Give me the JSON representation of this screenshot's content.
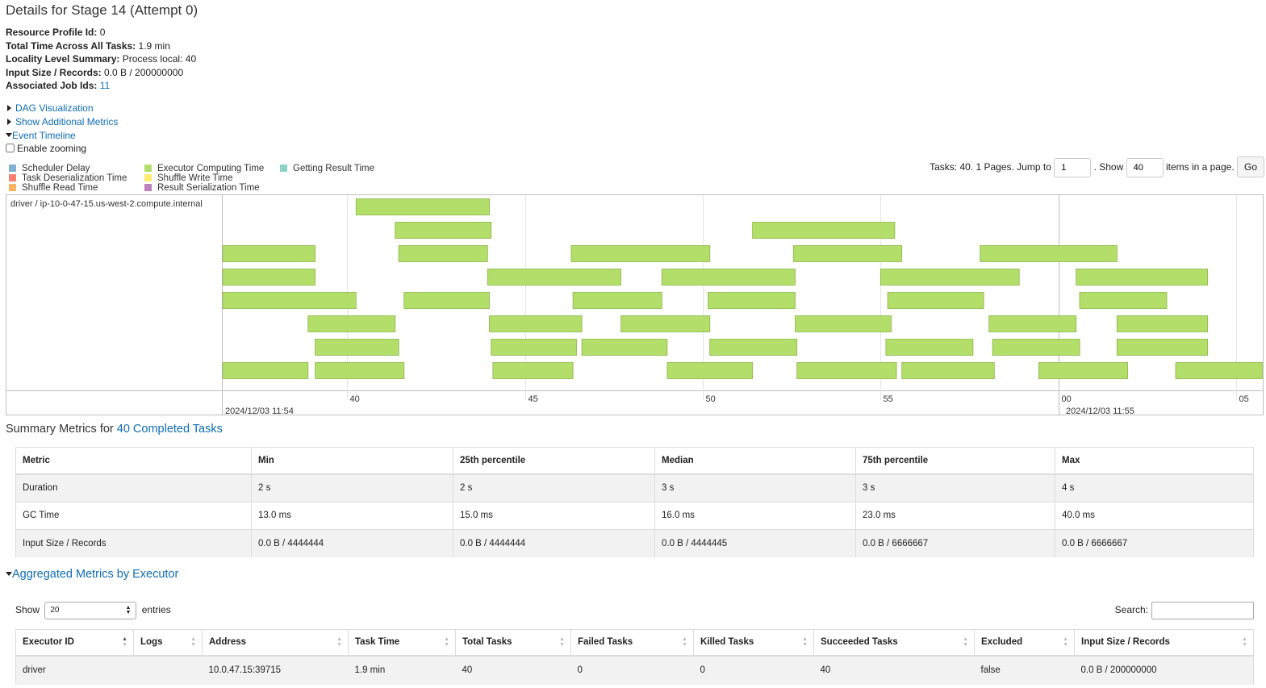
{
  "page": {
    "title": "Details for Stage 14 (Attempt 0)"
  },
  "stage_summary": [
    {
      "label": "Resource Profile Id:",
      "value": "0"
    },
    {
      "label": "Total Time Across All Tasks:",
      "value": "1.9 min"
    },
    {
      "label": "Locality Level Summary:",
      "value": "Process local: 40"
    },
    {
      "label": "Input Size / Records:",
      "value": "0.0 B / 200000000"
    },
    {
      "label": "Associated Job Ids:",
      "value": "11"
    }
  ],
  "toggles": {
    "dag": "DAG Visualization",
    "additional_metrics": "Show Additional Metrics",
    "event_timeline": "Event Timeline",
    "enable_zooming": "Enable zooming"
  },
  "legend": [
    {
      "label": "Scheduler Delay",
      "color": "#80b1d3"
    },
    {
      "label": "Task Deserialization Time",
      "color": "#fb8072"
    },
    {
      "label": "Shuffle Read Time",
      "color": "#fdb462"
    },
    {
      "label": "Executor Computing Time",
      "color": "#b3de69"
    },
    {
      "label": "Shuffle Write Time",
      "color": "#ffed6f"
    },
    {
      "label": "Result Serialization Time",
      "color": "#bc80bd"
    },
    {
      "label": "Getting Result Time",
      "color": "#8dd3c7"
    }
  ],
  "pager": {
    "prefix": "Tasks: 40. 1 Pages. Jump to",
    "jump_value": "1",
    "show_label": ". Show",
    "show_value": "40",
    "suffix": "items in a page.",
    "go": "Go"
  },
  "timeline": {
    "group_label": "driver / ip-10-0-47-15.us-west-2.compute.internal",
    "start_label": "2024/12/03 11:54",
    "end_label": "2024/12/03 11:55",
    "ticks": [
      "40",
      "45",
      "50",
      "55",
      "00",
      "05"
    ],
    "bar_color": "#b3de69",
    "bar_border": "#8ab748",
    "x_range_seconds": [
      36.5,
      65.75
    ],
    "tasks": [
      {
        "row": 0,
        "start": 40.25,
        "end": 44.0
      },
      {
        "row": 1,
        "start": 41.35,
        "end": 44.05
      },
      {
        "row": 1,
        "start": 51.4,
        "end": 55.4
      },
      {
        "row": 2,
        "start": 36.5,
        "end": 39.1
      },
      {
        "row": 2,
        "start": 41.45,
        "end": 43.95
      },
      {
        "row": 2,
        "start": 46.3,
        "end": 50.2
      },
      {
        "row": 2,
        "start": 52.55,
        "end": 55.6
      },
      {
        "row": 2,
        "start": 57.8,
        "end": 61.65
      },
      {
        "row": 3,
        "start": 36.5,
        "end": 39.1
      },
      {
        "row": 3,
        "start": 43.95,
        "end": 47.7
      },
      {
        "row": 3,
        "start": 48.85,
        "end": 52.6
      },
      {
        "row": 3,
        "start": 55.0,
        "end": 58.9
      },
      {
        "row": 3,
        "start": 60.5,
        "end": 64.2
      },
      {
        "row": 4,
        "start": 36.5,
        "end": 40.25
      },
      {
        "row": 4,
        "start": 41.6,
        "end": 44.0
      },
      {
        "row": 4,
        "start": 46.35,
        "end": 48.85
      },
      {
        "row": 4,
        "start": 50.15,
        "end": 52.6
      },
      {
        "row": 4,
        "start": 55.2,
        "end": 57.9
      },
      {
        "row": 4,
        "start": 60.6,
        "end": 63.05
      },
      {
        "row": 5,
        "start": 38.9,
        "end": 41.35
      },
      {
        "row": 5,
        "start": 44.0,
        "end": 46.6
      },
      {
        "row": 5,
        "start": 47.7,
        "end": 50.2
      },
      {
        "row": 5,
        "start": 52.6,
        "end": 55.3
      },
      {
        "row": 5,
        "start": 58.05,
        "end": 60.5
      },
      {
        "row": 5,
        "start": 61.65,
        "end": 64.2
      },
      {
        "row": 6,
        "start": 39.1,
        "end": 41.45
      },
      {
        "row": 6,
        "start": 44.05,
        "end": 46.45
      },
      {
        "row": 6,
        "start": 46.6,
        "end": 49.0
      },
      {
        "row": 6,
        "start": 50.2,
        "end": 52.65
      },
      {
        "row": 6,
        "start": 55.15,
        "end": 57.6
      },
      {
        "row": 6,
        "start": 58.15,
        "end": 60.6
      },
      {
        "row": 6,
        "start": 61.65,
        "end": 64.2
      },
      {
        "row": 7,
        "start": 36.5,
        "end": 38.9
      },
      {
        "row": 7,
        "start": 39.1,
        "end": 41.6
      },
      {
        "row": 7,
        "start": 44.1,
        "end": 46.35
      },
      {
        "row": 7,
        "start": 49.0,
        "end": 51.4
      },
      {
        "row": 7,
        "start": 52.65,
        "end": 55.45
      },
      {
        "row": 7,
        "start": 55.6,
        "end": 58.2
      },
      {
        "row": 7,
        "start": 59.45,
        "end": 61.95
      },
      {
        "row": 7,
        "start": 63.3,
        "end": 65.95
      }
    ]
  },
  "summary_metrics": {
    "title_prefix": "Summary Metrics for ",
    "title_link": "40 Completed Tasks",
    "headers": [
      "Metric",
      "Min",
      "25th percentile",
      "Median",
      "75th percentile",
      "Max"
    ],
    "rows": [
      [
        "Duration",
        "2 s",
        "2 s",
        "3 s",
        "3 s",
        "4 s"
      ],
      [
        "GC Time",
        "13.0 ms",
        "15.0 ms",
        "16.0 ms",
        "23.0 ms",
        "40.0 ms"
      ],
      [
        "Input Size / Records",
        "0.0 B / 4444444",
        "0.0 B / 4444444",
        "0.0 B / 4444445",
        "0.0 B / 6666667",
        "0.0 B / 6666667"
      ]
    ]
  },
  "aggregated": {
    "title": "Aggregated Metrics by Executor",
    "show_label": "Show",
    "entries_value": "20",
    "entries_label": "entries",
    "search_label": "Search:",
    "headers": [
      "Executor ID",
      "Logs",
      "Address",
      "Task Time",
      "Total Tasks",
      "Failed Tasks",
      "Killed Tasks",
      "Succeeded Tasks",
      "Excluded",
      "Input Size / Records"
    ],
    "rows": [
      [
        "driver",
        "",
        "10.0.47.15:39715",
        "1.9 min",
        "40",
        "0",
        "0",
        "40",
        "false",
        "0.0 B / 200000000"
      ]
    ]
  }
}
